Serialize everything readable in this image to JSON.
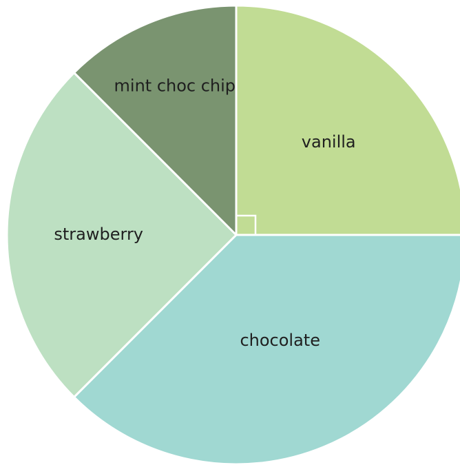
{
  "chart_data": {
    "type": "pie",
    "title": "",
    "start": "12 o'clock",
    "direction": "clockwise",
    "slices": [
      {
        "label": "vanilla",
        "value": 25,
        "color": "#c1dc94"
      },
      {
        "label": "chocolate",
        "value": 37.5,
        "color": "#a0d8d2"
      },
      {
        "label": "strawberry",
        "value": 25,
        "color": "#bde0c2"
      },
      {
        "label": "mint choc chip",
        "value": 12.5,
        "color": "#7a9470"
      }
    ],
    "right_angle_marker_on": "vanilla",
    "slice_border_color": "#ffffff"
  }
}
